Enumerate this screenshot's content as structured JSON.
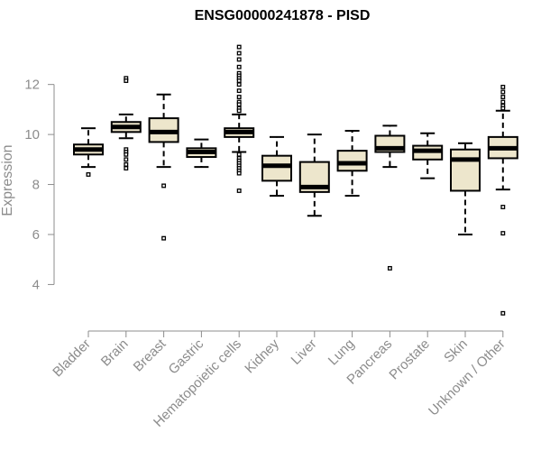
{
  "chart_data": {
    "type": "boxplot",
    "title": "ENSG00000241878 - PISD",
    "xlabel": "",
    "ylabel": "Expression",
    "ylim": [
      2.5,
      13.9
    ],
    "yticks": [
      4,
      6,
      8,
      10,
      12
    ],
    "grid": false,
    "legend": "none",
    "colors": {
      "box_fill": "#ede6cc",
      "box_stroke": "#000000",
      "axis": "#8c8c8c",
      "text": "#8c8c8c",
      "title": "#000000"
    },
    "categories": [
      "Bladder",
      "Brain",
      "Breast",
      "Gastric",
      "Hematopoietic cells",
      "Kidney",
      "Liver",
      "Lung",
      "Pancreas",
      "Prostate",
      "Skin",
      "Unknown / Other"
    ],
    "boxes": [
      {
        "category": "Bladder",
        "whisker_low": 8.7,
        "q1": 9.2,
        "median": 9.4,
        "q3": 9.6,
        "whisker_high": 10.25,
        "outliers": [
          8.4
        ]
      },
      {
        "category": "Brain",
        "whisker_low": 9.85,
        "q1": 10.1,
        "median": 10.3,
        "q3": 10.5,
        "whisker_high": 10.8,
        "outliers": [
          12.25,
          12.15,
          9.4,
          9.3,
          9.2,
          9.0,
          8.8,
          8.65
        ]
      },
      {
        "category": "Breast",
        "whisker_low": 8.7,
        "q1": 9.7,
        "median": 10.1,
        "q3": 10.65,
        "whisker_high": 11.6,
        "outliers": [
          7.95,
          5.85
        ]
      },
      {
        "category": "Gastric",
        "whisker_low": 8.7,
        "q1": 9.1,
        "median": 9.3,
        "q3": 9.45,
        "whisker_high": 9.8,
        "outliers": []
      },
      {
        "category": "Hematopoietic cells",
        "whisker_low": 9.3,
        "q1": 9.9,
        "median": 10.1,
        "q3": 10.25,
        "whisker_high": 10.8,
        "outliers": [
          13.5,
          13.25,
          13.0,
          12.7,
          12.45,
          12.35,
          12.25,
          12.15,
          12.0,
          11.75,
          11.5,
          11.3,
          11.2,
          11.05,
          10.95,
          9.2,
          9.05,
          8.95,
          8.85,
          8.75,
          8.65,
          8.55,
          8.45,
          7.75
        ]
      },
      {
        "category": "Kidney",
        "whisker_low": 7.55,
        "q1": 8.15,
        "median": 8.75,
        "q3": 9.15,
        "whisker_high": 9.9,
        "outliers": []
      },
      {
        "category": "Liver",
        "whisker_low": 6.75,
        "q1": 7.7,
        "median": 7.9,
        "q3": 8.9,
        "whisker_high": 10.0,
        "outliers": []
      },
      {
        "category": "Lung",
        "whisker_low": 7.55,
        "q1": 8.55,
        "median": 8.85,
        "q3": 9.35,
        "whisker_high": 10.15,
        "outliers": []
      },
      {
        "category": "Pancreas",
        "whisker_low": 8.7,
        "q1": 9.3,
        "median": 9.45,
        "q3": 9.95,
        "whisker_high": 10.35,
        "outliers": [
          4.65
        ]
      },
      {
        "category": "Prostate",
        "whisker_low": 8.25,
        "q1": 9.0,
        "median": 9.35,
        "q3": 9.55,
        "whisker_high": 10.05,
        "outliers": []
      },
      {
        "category": "Skin",
        "whisker_low": 6.0,
        "q1": 7.75,
        "median": 9.0,
        "q3": 9.4,
        "whisker_high": 9.65,
        "outliers": []
      },
      {
        "category": "Unknown / Other",
        "whisker_low": 7.8,
        "q1": 9.05,
        "median": 9.45,
        "q3": 9.9,
        "whisker_high": 10.95,
        "outliers": [
          11.9,
          11.7,
          11.5,
          11.3,
          11.15,
          11.05,
          7.1,
          6.05,
          2.85
        ]
      }
    ]
  }
}
